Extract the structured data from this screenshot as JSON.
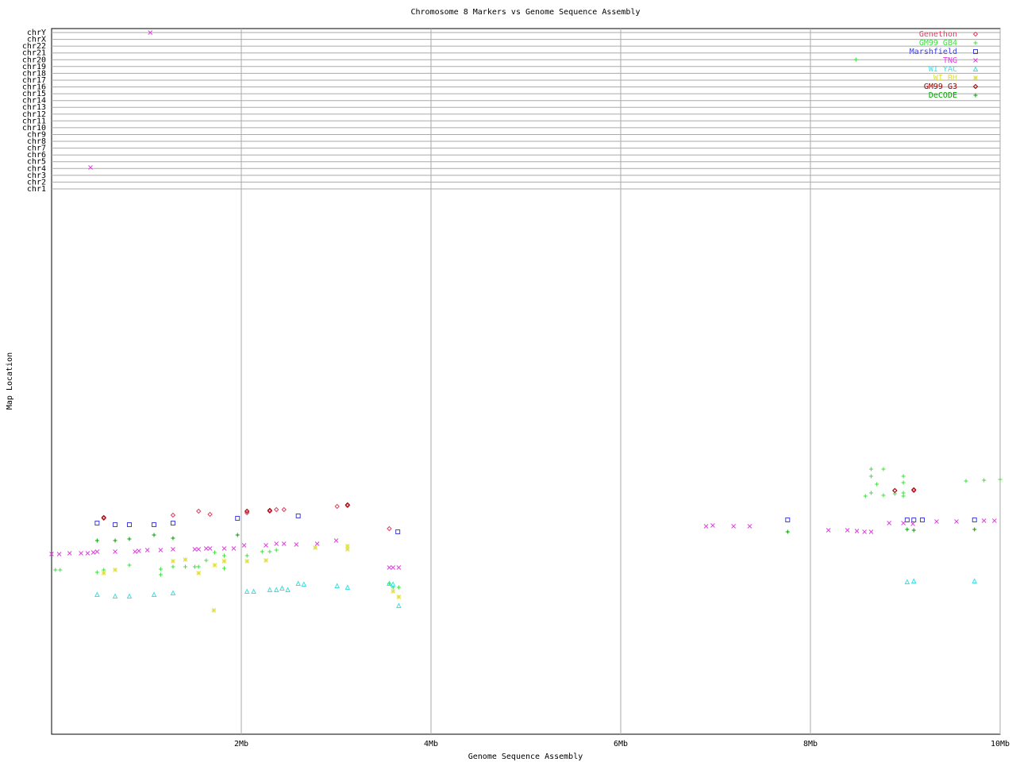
{
  "chart_data": {
    "type": "scatter",
    "title": "Chromosome 8 Markers vs Genome Sequence Assembly",
    "x_label": "Genome Sequence Assembly",
    "y_label": "Map Location",
    "xlim": [
      0,
      10
    ],
    "ylim": [
      0,
      889
    ],
    "xticks": [
      {
        "value": 2,
        "label": "2Mb"
      },
      {
        "value": 4,
        "label": "4Mb"
      },
      {
        "value": 6,
        "label": "6Mb"
      },
      {
        "value": 8,
        "label": "8Mb"
      },
      {
        "value": 10,
        "label": "10Mb"
      }
    ],
    "yticks": [
      {
        "value": 687,
        "label": "chr1"
      },
      {
        "value": 695.6,
        "label": "chr2"
      },
      {
        "value": 704.1,
        "label": "chr3"
      },
      {
        "value": 712.7,
        "label": "chr4"
      },
      {
        "value": 721.3,
        "label": "chr5"
      },
      {
        "value": 729.8,
        "label": "chr6"
      },
      {
        "value": 738.4,
        "label": "chr7"
      },
      {
        "value": 747,
        "label": "chr8"
      },
      {
        "value": 755.5,
        "label": "chr9"
      },
      {
        "value": 764.1,
        "label": "chr10"
      },
      {
        "value": 772.7,
        "label": "chr11"
      },
      {
        "value": 781.2,
        "label": "chr12"
      },
      {
        "value": 789.8,
        "label": "chr13"
      },
      {
        "value": 798.3,
        "label": "chr14"
      },
      {
        "value": 806.9,
        "label": "chr15"
      },
      {
        "value": 815.5,
        "label": "chr16"
      },
      {
        "value": 824,
        "label": "chr17"
      },
      {
        "value": 832.6,
        "label": "chr18"
      },
      {
        "value": 841.2,
        "label": "chr19"
      },
      {
        "value": 849.7,
        "label": "chr20"
      },
      {
        "value": 858.3,
        "label": "chr21"
      },
      {
        "value": 866.9,
        "label": "chr22"
      },
      {
        "value": 875.4,
        "label": "chrX"
      },
      {
        "value": 884,
        "label": "chrY"
      }
    ],
    "grid": true,
    "legend": "top-right",
    "series": [
      {
        "name": "Genethon",
        "color": "#e04060",
        "marker": "diamond",
        "x": [
          0.55,
          1.28,
          1.55,
          1.67,
          2.06,
          2.3,
          2.37,
          2.45,
          3.01,
          3.12,
          3.56,
          8.89,
          9.09
        ],
        "values": [
          272,
          276,
          281,
          277,
          279,
          281,
          283,
          283,
          287,
          288,
          259,
          307,
          307
        ]
      },
      {
        "name": "GM99 GB4",
        "color": "#40e040",
        "marker": "plus",
        "x": [
          0.04,
          0.09,
          0.48,
          0.55,
          0.82,
          1.15,
          1.15,
          1.28,
          1.41,
          1.51,
          1.55,
          1.63,
          1.72,
          1.82,
          1.82,
          2.06,
          2.22,
          2.3,
          2.37,
          3.56,
          3.6,
          3.66,
          8.48,
          8.58,
          8.64,
          8.64,
          8.64,
          8.7,
          8.77,
          8.77,
          8.89,
          8.98,
          8.98,
          8.98,
          8.98,
          9.64,
          9.83,
          10
        ],
        "values": [
          207,
          207,
          204,
          207,
          213,
          208,
          201,
          211,
          211,
          211,
          211,
          219,
          229,
          225,
          209,
          225,
          230,
          230,
          232,
          190,
          185,
          185,
          850,
          300,
          304,
          325,
          334,
          315,
          334,
          301,
          303,
          325,
          317,
          304,
          300,
          319,
          320,
          321
        ]
      },
      {
        "name": "Marshfield",
        "color": "#4040e0",
        "marker": "square",
        "x": [
          0.48,
          0.67,
          0.82,
          1.08,
          1.28,
          1.96,
          2.6,
          3.65,
          7.76,
          9.02,
          9.09,
          9.18,
          9.73
        ],
        "values": [
          266,
          264,
          264,
          264,
          266,
          272,
          275,
          255,
          270,
          270,
          270,
          270,
          270
        ]
      },
      {
        "name": "TNG",
        "color": "#e040e0",
        "marker": "cross",
        "x": [
          1.04,
          0.41,
          0,
          0.08,
          0.19,
          0.31,
          0.38,
          0.44,
          0.48,
          0.67,
          0.88,
          0.92,
          1.01,
          1.15,
          1.28,
          1.51,
          1.55,
          1.63,
          1.67,
          1.82,
          1.92,
          2.03,
          2.26,
          2.37,
          2.45,
          2.58,
          2.8,
          3.0,
          3.56,
          3.6,
          3.66,
          6.9,
          6.97,
          7.19,
          7.36,
          8.19,
          8.39,
          8.49,
          8.57,
          8.64,
          8.83,
          8.98,
          9.08,
          9.33,
          9.54,
          9.83,
          9.94
        ],
        "values": [
          884,
          714,
          227,
          227,
          228,
          228,
          228,
          229,
          230,
          230,
          230,
          231,
          232,
          232,
          233,
          233,
          233,
          234,
          234,
          234,
          234,
          238,
          238,
          240,
          240,
          239,
          240,
          244,
          210,
          210,
          210,
          262,
          263,
          262,
          262,
          257,
          257,
          256,
          255,
          255,
          266,
          266,
          265,
          268,
          268,
          269,
          269
        ]
      },
      {
        "name": "WI YAC",
        "color": "#40e0e0",
        "marker": "triangle",
        "x": [
          0.48,
          0.67,
          0.82,
          1.08,
          1.28,
          2.06,
          2.13,
          2.3,
          2.37,
          2.43,
          2.49,
          2.6,
          2.66,
          3.01,
          3.12,
          3.56,
          3.6,
          3.66,
          9.02,
          9.09,
          9.73
        ],
        "values": [
          176,
          174,
          174,
          176,
          178,
          180,
          180,
          182,
          182,
          184,
          182,
          190,
          189,
          187,
          185,
          190,
          189,
          162,
          192,
          193,
          193
        ]
      },
      {
        "name": "WI RH",
        "color": "#e0e040",
        "marker": "star",
        "x": [
          0.55,
          0.67,
          1.28,
          1.41,
          1.55,
          1.72,
          1.82,
          2.06,
          2.26,
          2.78,
          3.12,
          3.12,
          1.71,
          3.6,
          3.66
        ],
        "values": [
          203,
          207,
          218,
          220,
          203,
          213,
          218,
          218,
          219,
          235,
          237,
          233,
          156,
          180,
          173
        ]
      },
      {
        "name": "GM99 G3",
        "color": "#a00000",
        "marker": "diamond",
        "x": [
          0.55,
          2.06,
          2.3,
          3.12,
          8.89,
          9.09
        ],
        "values": [
          273,
          281,
          282,
          289,
          307,
          308
        ]
      },
      {
        "name": "DeCODE",
        "color": "#00a000",
        "marker": "plus",
        "x": [
          0.48,
          0.67,
          0.82,
          1.08,
          1.28,
          1.96,
          7.76,
          9.02,
          9.09,
          9.73
        ],
        "values": [
          244,
          244,
          246,
          251,
          247,
          251,
          255,
          258,
          257,
          258
        ]
      }
    ]
  }
}
